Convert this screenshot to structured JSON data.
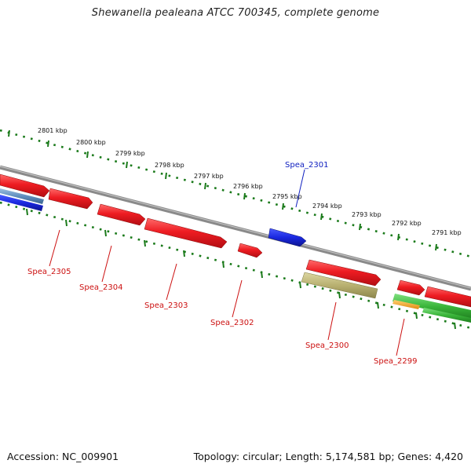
{
  "title": "Shewanella pealeana ATCC 700345, complete genome",
  "footer": {
    "accession": "Accession: NC_009901",
    "topology": "Topology: circular; Length: 5,174,581 bp; Genes: 4,420"
  },
  "colors": {
    "backbone": "#8c8c8c",
    "tick": "#1a7a1a",
    "gene_forward": "#e0161d",
    "gene_reverse": "#1826d8",
    "label_red": "#cc1010",
    "label_blue": "#1020c0",
    "rna_tan": "#b8b070",
    "track_steel": "#5f8fbf",
    "track_green": "#3ab53a",
    "track_orange": "#f0a020"
  },
  "kbp_labels": [
    {
      "kbp": 2801,
      "text": "2801 kbp"
    },
    {
      "kbp": 2800,
      "text": "2800 kbp"
    },
    {
      "kbp": 2799,
      "text": "2799 kbp"
    },
    {
      "kbp": 2798,
      "text": "2798 kbp"
    },
    {
      "kbp": 2797,
      "text": "2797 kbp"
    },
    {
      "kbp": 2796,
      "text": "2796 kbp"
    },
    {
      "kbp": 2795,
      "text": "2795 kbp"
    },
    {
      "kbp": 2794,
      "text": "2794 kbp"
    },
    {
      "kbp": 2793,
      "text": "2793 kbp"
    },
    {
      "kbp": 2792,
      "text": "2792 kbp"
    },
    {
      "kbp": 2791,
      "text": "2791 kbp"
    }
  ],
  "gene_labels": [
    {
      "text": "Spea_2305",
      "strand": "forward"
    },
    {
      "text": "Spea_2304",
      "strand": "forward"
    },
    {
      "text": "Spea_2303",
      "strand": "forward"
    },
    {
      "text": "Spea_2302",
      "strand": "forward"
    },
    {
      "text": "Spea_2301",
      "strand": "reverse"
    },
    {
      "text": "Spea_2300",
      "strand": "forward"
    },
    {
      "text": "Spea_2299",
      "strand": "forward"
    }
  ]
}
